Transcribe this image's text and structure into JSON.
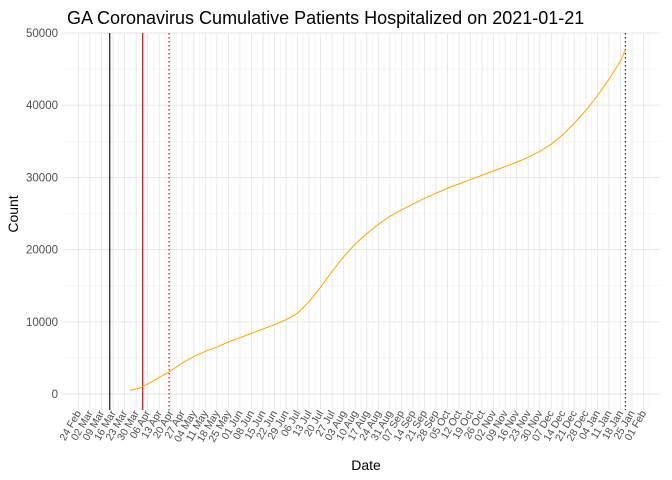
{
  "chart_data": {
    "type": "line",
    "title": "GA Coronavirus Cumulative Patients Hospitalized on 2021-01-21",
    "xlabel": "Date",
    "ylabel": "Count",
    "x_range": [
      "2020-02-24",
      "2021-02-01"
    ],
    "ylim": [
      0,
      50000
    ],
    "yticks": [
      0,
      10000,
      20000,
      30000,
      40000,
      50000
    ],
    "xticks": [
      {
        "date": "2020-02-24",
        "label": "24 Feb"
      },
      {
        "date": "2020-03-02",
        "label": "02 Mar"
      },
      {
        "date": "2020-03-09",
        "label": "09 Mar"
      },
      {
        "date": "2020-03-16",
        "label": "16 Mar"
      },
      {
        "date": "2020-03-23",
        "label": "23 Mar"
      },
      {
        "date": "2020-03-30",
        "label": "30 Mar"
      },
      {
        "date": "2020-04-06",
        "label": "06 Apr"
      },
      {
        "date": "2020-04-13",
        "label": "13 Apr"
      },
      {
        "date": "2020-04-20",
        "label": "20 Apr"
      },
      {
        "date": "2020-04-27",
        "label": "27 Apr"
      },
      {
        "date": "2020-05-04",
        "label": "04 May"
      },
      {
        "date": "2020-05-11",
        "label": "11 May"
      },
      {
        "date": "2020-05-18",
        "label": "18 May"
      },
      {
        "date": "2020-05-25",
        "label": "25 May"
      },
      {
        "date": "2020-06-01",
        "label": "01 Jun"
      },
      {
        "date": "2020-06-08",
        "label": "08 Jun"
      },
      {
        "date": "2020-06-15",
        "label": "15 Jun"
      },
      {
        "date": "2020-06-22",
        "label": "22 Jun"
      },
      {
        "date": "2020-06-29",
        "label": "29 Jun"
      },
      {
        "date": "2020-07-06",
        "label": "06 Jul"
      },
      {
        "date": "2020-07-13",
        "label": "13 Jul"
      },
      {
        "date": "2020-07-20",
        "label": "20 Jul"
      },
      {
        "date": "2020-07-27",
        "label": "27 Jul"
      },
      {
        "date": "2020-08-03",
        "label": "03 Aug"
      },
      {
        "date": "2020-08-10",
        "label": "10 Aug"
      },
      {
        "date": "2020-08-17",
        "label": "17 Aug"
      },
      {
        "date": "2020-08-24",
        "label": "24 Aug"
      },
      {
        "date": "2020-08-31",
        "label": "31 Aug"
      },
      {
        "date": "2020-09-07",
        "label": "07 Sep"
      },
      {
        "date": "2020-09-14",
        "label": "14 Sep"
      },
      {
        "date": "2020-09-21",
        "label": "21 Sep"
      },
      {
        "date": "2020-09-28",
        "label": "28 Sep"
      },
      {
        "date": "2020-10-05",
        "label": "05 Oct"
      },
      {
        "date": "2020-10-12",
        "label": "12 Oct"
      },
      {
        "date": "2020-10-19",
        "label": "19 Oct"
      },
      {
        "date": "2020-10-26",
        "label": "26 Oct"
      },
      {
        "date": "2020-11-02",
        "label": "02 Nov"
      },
      {
        "date": "2020-11-09",
        "label": "09 Nov"
      },
      {
        "date": "2020-11-16",
        "label": "16 Nov"
      },
      {
        "date": "2020-11-23",
        "label": "23 Nov"
      },
      {
        "date": "2020-11-30",
        "label": "30 Nov"
      },
      {
        "date": "2020-12-07",
        "label": "07 Dec"
      },
      {
        "date": "2020-12-14",
        "label": "14 Dec"
      },
      {
        "date": "2020-12-21",
        "label": "21 Dec"
      },
      {
        "date": "2020-12-28",
        "label": "28 Dec"
      },
      {
        "date": "2021-01-04",
        "label": "04 Jan"
      },
      {
        "date": "2021-01-11",
        "label": "11 Jan"
      },
      {
        "date": "2021-01-18",
        "label": "18 Jan"
      },
      {
        "date": "2021-01-25",
        "label": "25 Jan"
      },
      {
        "date": "2021-02-01",
        "label": "01 Feb"
      }
    ],
    "grid": true,
    "vlines": [
      {
        "date": "2020-03-14",
        "color": "#000000",
        "style": "solid"
      },
      {
        "date": "2020-04-03",
        "color": "#cc0000",
        "style": "solid"
      },
      {
        "date": "2020-04-19",
        "color": "#cc0000",
        "style": "dotted"
      },
      {
        "date": "2021-01-21",
        "color": "#000080",
        "style": "dotted"
      }
    ],
    "series": [
      {
        "color": "#ffa500",
        "points": [
          {
            "x": "2020-03-26",
            "y": 500
          },
          {
            "x": "2020-04-01",
            "y": 800
          },
          {
            "x": "2020-04-07",
            "y": 1500
          },
          {
            "x": "2020-04-13",
            "y": 2300
          },
          {
            "x": "2020-04-20",
            "y": 3200
          },
          {
            "x": "2020-04-27",
            "y": 4300
          },
          {
            "x": "2020-05-04",
            "y": 5200
          },
          {
            "x": "2020-05-11",
            "y": 5900
          },
          {
            "x": "2020-05-18",
            "y": 6500
          },
          {
            "x": "2020-05-25",
            "y": 7200
          },
          {
            "x": "2020-06-01",
            "y": 7800
          },
          {
            "x": "2020-06-08",
            "y": 8400
          },
          {
            "x": "2020-06-15",
            "y": 9000
          },
          {
            "x": "2020-06-22",
            "y": 9600
          },
          {
            "x": "2020-06-29",
            "y": 10300
          },
          {
            "x": "2020-07-06",
            "y": 11200
          },
          {
            "x": "2020-07-13",
            "y": 12800
          },
          {
            "x": "2020-07-20",
            "y": 14800
          },
          {
            "x": "2020-07-27",
            "y": 17000
          },
          {
            "x": "2020-08-03",
            "y": 19000
          },
          {
            "x": "2020-08-10",
            "y": 20800
          },
          {
            "x": "2020-08-17",
            "y": 22200
          },
          {
            "x": "2020-08-24",
            "y": 23500
          },
          {
            "x": "2020-08-31",
            "y": 24600
          },
          {
            "x": "2020-09-07",
            "y": 25500
          },
          {
            "x": "2020-09-14",
            "y": 26300
          },
          {
            "x": "2020-09-21",
            "y": 27100
          },
          {
            "x": "2020-09-28",
            "y": 27800
          },
          {
            "x": "2020-10-05",
            "y": 28500
          },
          {
            "x": "2020-10-12",
            "y": 29100
          },
          {
            "x": "2020-10-19",
            "y": 29700
          },
          {
            "x": "2020-10-26",
            "y": 30300
          },
          {
            "x": "2020-11-02",
            "y": 30900
          },
          {
            "x": "2020-11-09",
            "y": 31500
          },
          {
            "x": "2020-11-16",
            "y": 32100
          },
          {
            "x": "2020-11-23",
            "y": 32800
          },
          {
            "x": "2020-11-30",
            "y": 33600
          },
          {
            "x": "2020-12-07",
            "y": 34600
          },
          {
            "x": "2020-12-14",
            "y": 35900
          },
          {
            "x": "2020-12-21",
            "y": 37500
          },
          {
            "x": "2020-12-28",
            "y": 39300
          },
          {
            "x": "2021-01-04",
            "y": 41300
          },
          {
            "x": "2021-01-11",
            "y": 43600
          },
          {
            "x": "2021-01-18",
            "y": 46100
          },
          {
            "x": "2021-01-21",
            "y": 47700
          }
        ]
      }
    ]
  }
}
